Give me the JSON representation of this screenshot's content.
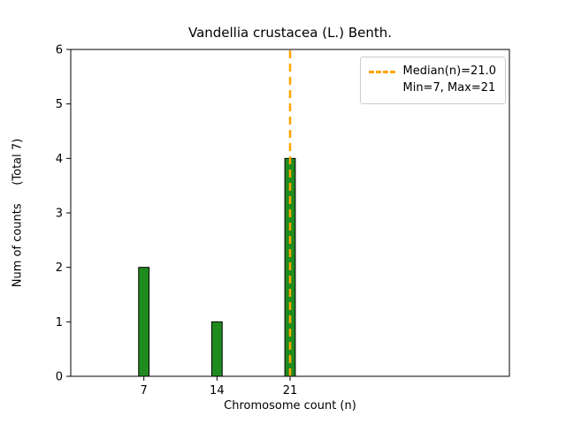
{
  "chart_data": {
    "type": "bar",
    "title": "Vandellia crustacea (L.) Benth.",
    "xlabel": "Chromosome count (n)",
    "ylabel": "Num of counts     (Total 7)",
    "categories": [
      7,
      14,
      21
    ],
    "values": [
      2,
      1,
      4
    ],
    "total_counts": 7,
    "xlim": [
      0,
      42
    ],
    "ylim": [
      0,
      6
    ],
    "xticks": [
      7,
      14,
      21
    ],
    "yticks": [
      0,
      1,
      2,
      3,
      4,
      5,
      6
    ],
    "grid": false,
    "bar_color": "#1f8b1f",
    "bar_edge_color": "#000000",
    "bar_width_units": 1,
    "median_line": {
      "x": 21,
      "color": "#FFA500",
      "style": "dashed",
      "label": "Median(n)=21.0"
    },
    "min": 7,
    "max": 21,
    "legend": {
      "position": "upper-right",
      "entries": [
        {
          "label": "Median(n)=21.0",
          "swatch": "dashed-orange-line"
        },
        {
          "label": "Min=7, Max=21",
          "swatch": "none"
        }
      ]
    }
  }
}
